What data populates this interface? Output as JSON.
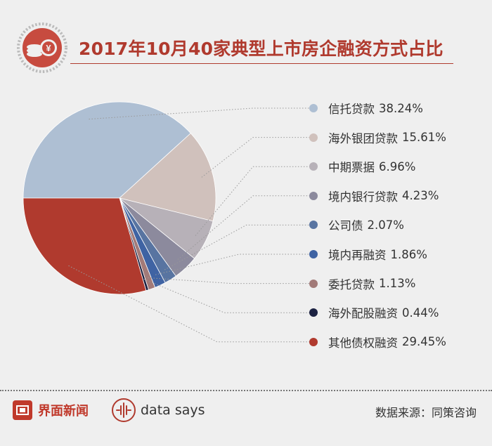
{
  "title": "2017年10月40家典型上市房企融资方式占比",
  "badge_symbol": "¥",
  "chart_data": {
    "type": "pie",
    "title": "2017年10月40家典型上市房企融资方式占比",
    "unit": "%",
    "legend_position": "right",
    "slices": [
      {
        "name": "信托贷款",
        "value": 38.24,
        "value_label": "38.24%",
        "color": "#aebfd3"
      },
      {
        "name": "海外银团贷款",
        "value": 15.61,
        "value_label": "15.61%",
        "color": "#d0c1bc"
      },
      {
        "name": "中期票据",
        "value": 6.96,
        "value_label": "6.96%",
        "color": "#b7b1b8"
      },
      {
        "name": "境内银行贷款",
        "value": 4.23,
        "value_label": "4.23%",
        "color": "#8c8a9d"
      },
      {
        "name": "公司债",
        "value": 2.07,
        "value_label": "2.07%",
        "color": "#5874a1"
      },
      {
        "name": "境内再融资",
        "value": 1.86,
        "value_label": "1.86%",
        "color": "#3f63a3"
      },
      {
        "name": "委托贷款",
        "value": 1.13,
        "value_label": "1.13%",
        "color": "#a27a78"
      },
      {
        "name": "海外配股融资",
        "value": 0.44,
        "value_label": "0.44%",
        "color": "#1c2242"
      },
      {
        "name": "其他债权融资",
        "value": 29.45,
        "value_label": "29.45%",
        "color": "#b03a2e"
      }
    ]
  },
  "footer": {
    "brand": "界面新闻",
    "datasays": "data says",
    "source": "数据来源：同策咨询"
  },
  "colors": {
    "accent": "#b03a2e",
    "background": "#efefef"
  },
  "icons": {
    "badge": "coins-icon",
    "brand": "jiemian-logo-icon",
    "datasays": "waveform-icon"
  }
}
